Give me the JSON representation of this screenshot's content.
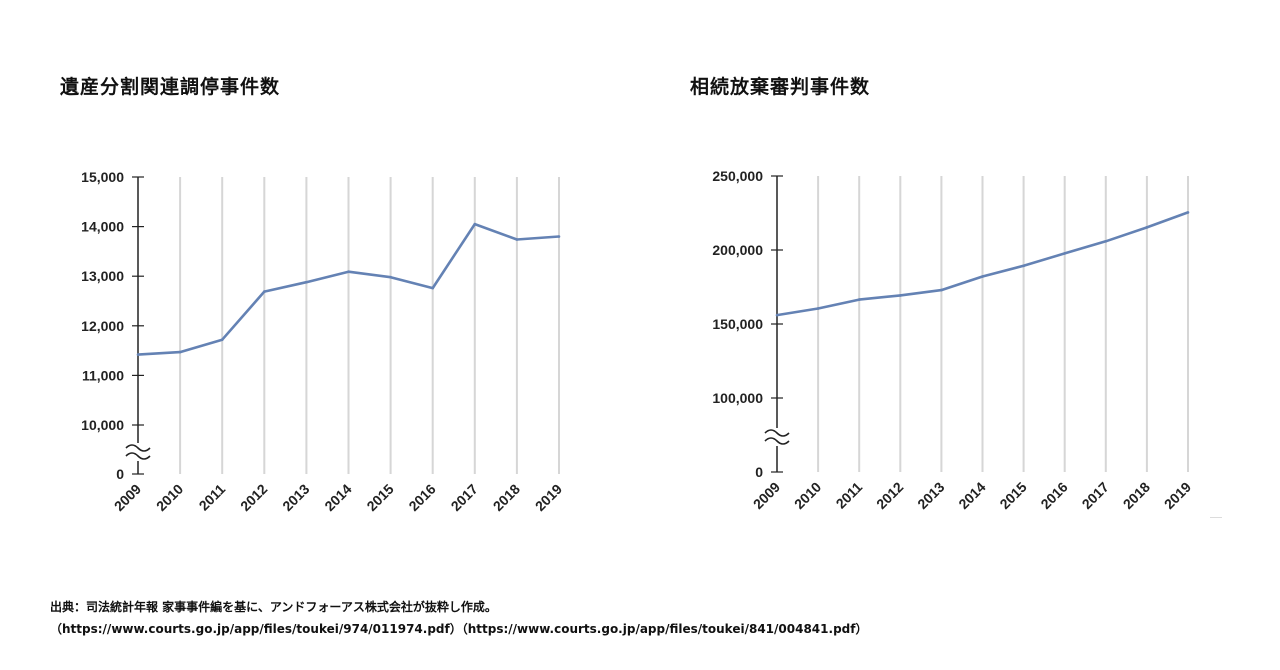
{
  "charts": [
    {
      "title": "遺産分割関連調停事件数"
    },
    {
      "title": "相続放棄審判事件数"
    }
  ],
  "source": {
    "line1": "出典：司法統計年報 家事事件編を基に、アンドフォーアス株式会社が抜粋し作成。",
    "line2": "（https://www.courts.go.jp/app/files/toukei/974/011974.pdf）（https://www.courts.go.jp/app/files/toukei/841/004841.pdf）"
  },
  "colors": {
    "line": "#6482b4",
    "grid": "#d6d6d6",
    "axis": "#222222"
  },
  "chart_data": [
    {
      "type": "line",
      "title": "遺産分割関連調停事件数",
      "x": [
        "2009",
        "2010",
        "2011",
        "2012",
        "2013",
        "2014",
        "2015",
        "2016",
        "2017",
        "2018",
        "2019"
      ],
      "series": [
        {
          "values": [
            11420,
            11470,
            11720,
            12690,
            12880,
            13090,
            12980,
            12760,
            14050,
            13740,
            13800
          ]
        }
      ],
      "yticks": [
        15000,
        14000,
        13000,
        12000,
        11000,
        10000
      ],
      "ytick_labels": [
        "15,000",
        "14,000",
        "13,000",
        "12,000",
        "11,000",
        "10,000"
      ],
      "ylim": [
        10000,
        15000
      ],
      "axis_break": {
        "lower_label": "0"
      },
      "grid": "vertical"
    },
    {
      "type": "line",
      "title": "相続放棄審判事件数",
      "x": [
        "2009",
        "2010",
        "2011",
        "2012",
        "2013",
        "2014",
        "2015",
        "2016",
        "2017",
        "2018",
        "2019"
      ],
      "series": [
        {
          "values": [
            156000,
            160500,
            166500,
            169300,
            172900,
            182100,
            189300,
            197700,
            205900,
            215300,
            225400
          ]
        }
      ],
      "yticks": [
        250000,
        200000,
        150000,
        100000
      ],
      "ytick_labels": [
        "250,000",
        "200,000",
        "150,000",
        "100,000"
      ],
      "ylim": [
        100000,
        250000
      ],
      "axis_break": {
        "lower_label": "0"
      },
      "grid": "vertical"
    }
  ]
}
